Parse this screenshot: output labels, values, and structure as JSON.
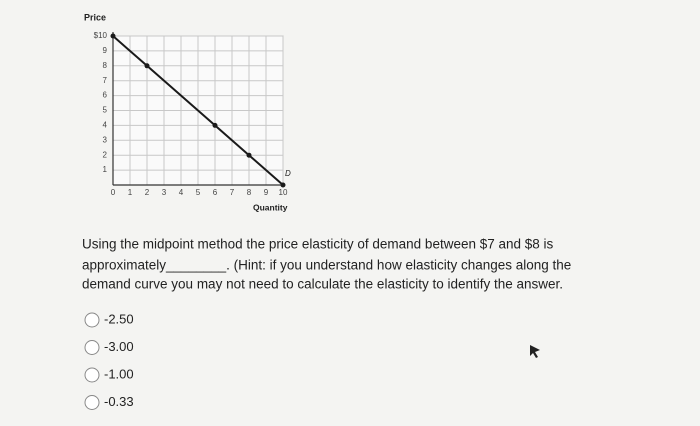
{
  "chart_data": {
    "type": "line",
    "ylabel": "Price",
    "xlabel": "Quantity",
    "x": [
      0,
      2,
      6,
      8,
      10
    ],
    "series": [
      {
        "name": "D",
        "color": "#1a1a1a",
        "values": [
          10,
          8,
          4,
          2,
          0
        ]
      }
    ],
    "xlim": [
      0,
      10
    ],
    "ylim": [
      0,
      10
    ],
    "xticks": [
      0,
      1,
      2,
      3,
      4,
      5,
      6,
      7,
      8,
      9,
      10
    ],
    "yticks": [
      1,
      2,
      3,
      4,
      5,
      6,
      7,
      8,
      9,
      {
        "value": 10,
        "label": "$10"
      }
    ],
    "grid": true
  },
  "question": {
    "lines": [
      "Using the midpoint method the price elasticity of demand between $7 and $8 is",
      "approximately________. (Hint: if you understand how elasticity changes along the",
      "demand curve you may not need to calculate the elasticity to identify the answer."
    ],
    "options": [
      "-2.50",
      "-3.00",
      "-1.00",
      "-0.33"
    ]
  }
}
